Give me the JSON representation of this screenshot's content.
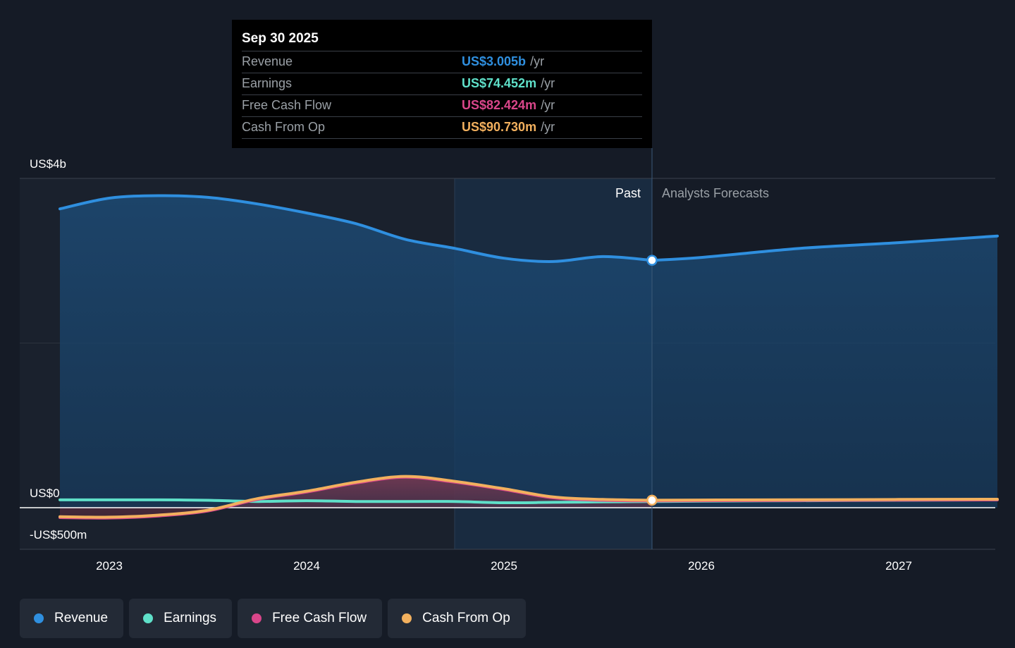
{
  "tooltip": {
    "date": "Sep 30 2025",
    "rows": [
      {
        "name": "Revenue",
        "value": "US$3.005b",
        "unit": "/yr",
        "color": "#2f8fdf"
      },
      {
        "name": "Earnings",
        "value": "US$74.452m",
        "unit": "/yr",
        "color": "#5fe0c9"
      },
      {
        "name": "Free Cash Flow",
        "value": "US$82.424m",
        "unit": "/yr",
        "color": "#d9468a"
      },
      {
        "name": "Cash From Op",
        "value": "US$90.730m",
        "unit": "/yr",
        "color": "#f2b05e"
      }
    ]
  },
  "legend": [
    {
      "label": "Revenue",
      "color": "#2f8fdf"
    },
    {
      "label": "Earnings",
      "color": "#5fe0c9"
    },
    {
      "label": "Free Cash Flow",
      "color": "#d9468a"
    },
    {
      "label": "Cash From Op",
      "color": "#f2b05e"
    }
  ],
  "chart_data": {
    "type": "area",
    "y_axis_labels": {
      "top": "US$4b",
      "zero": "US$0",
      "bottom": "-US$500m"
    },
    "ylim": [
      -500,
      4000
    ],
    "xlim": [
      2022.7,
      2027.5
    ],
    "x_ticks": [
      {
        "value": 2023,
        "label": "2023"
      },
      {
        "value": 2024,
        "label": "2024"
      },
      {
        "value": 2025,
        "label": "2025"
      },
      {
        "value": 2026,
        "label": "2026"
      },
      {
        "value": 2027,
        "label": "2027"
      }
    ],
    "past_label": "Past",
    "forecast_label": "Analysts Forecasts",
    "past_boundary": 2025.75,
    "highlight_start": 2024.75,
    "series": [
      {
        "name": "Revenue",
        "color": "#2f8fdf",
        "fill": "#1c4a73",
        "x": [
          2022.75,
          2023.0,
          2023.25,
          2023.5,
          2023.75,
          2024.0,
          2024.25,
          2024.5,
          2024.75,
          2025.0,
          2025.25,
          2025.5,
          2025.75
        ],
        "values": [
          3630,
          3760,
          3790,
          3770,
          3690,
          3580,
          3450,
          3260,
          3150,
          3030,
          2990,
          3050,
          3005
        ],
        "forecast_x": [
          2025.75,
          2026.0,
          2026.5,
          2027.0,
          2027.5
        ],
        "forecast_values": [
          3005,
          3040,
          3150,
          3220,
          3300
        ]
      },
      {
        "name": "Earnings",
        "color": "#5fe0c9",
        "x": [
          2022.75,
          2023.0,
          2023.25,
          2023.5,
          2023.75,
          2024.0,
          2024.25,
          2024.5,
          2024.75,
          2025.0,
          2025.25,
          2025.5,
          2025.75
        ],
        "values": [
          95,
          95,
          95,
          90,
          75,
          85,
          75,
          75,
          75,
          60,
          65,
          70,
          74.452
        ],
        "forecast_x": [
          2025.75,
          2026.0,
          2026.5,
          2027.0,
          2027.5
        ],
        "forecast_values": [
          74,
          80,
          85,
          90,
          95
        ]
      },
      {
        "name": "Free Cash Flow",
        "color": "#d9468a",
        "x": [
          2022.75,
          2023.0,
          2023.25,
          2023.5,
          2023.75,
          2024.0,
          2024.25,
          2024.5,
          2024.75,
          2025.0,
          2025.25,
          2025.5,
          2025.75
        ],
        "values": [
          -120,
          -125,
          -100,
          -40,
          100,
          190,
          300,
          370,
          310,
          220,
          120,
          90,
          82.424
        ],
        "forecast_x": [
          2025.75,
          2026.0,
          2026.5,
          2027.0,
          2027.5
        ],
        "forecast_values": [
          82,
          85,
          88,
          92,
          95
        ]
      },
      {
        "name": "Cash From Op",
        "color": "#f2b05e",
        "x": [
          2022.75,
          2023.0,
          2023.25,
          2023.5,
          2023.75,
          2024.0,
          2024.25,
          2024.5,
          2024.75,
          2025.0,
          2025.25,
          2025.5,
          2025.75
        ],
        "values": [
          -110,
          -115,
          -90,
          -30,
          110,
          200,
          310,
          380,
          320,
          230,
          130,
          100,
          90.73
        ],
        "forecast_x": [
          2025.75,
          2026.0,
          2026.5,
          2027.0,
          2027.5
        ],
        "forecast_values": [
          91,
          93,
          96,
          100,
          103
        ]
      }
    ]
  }
}
